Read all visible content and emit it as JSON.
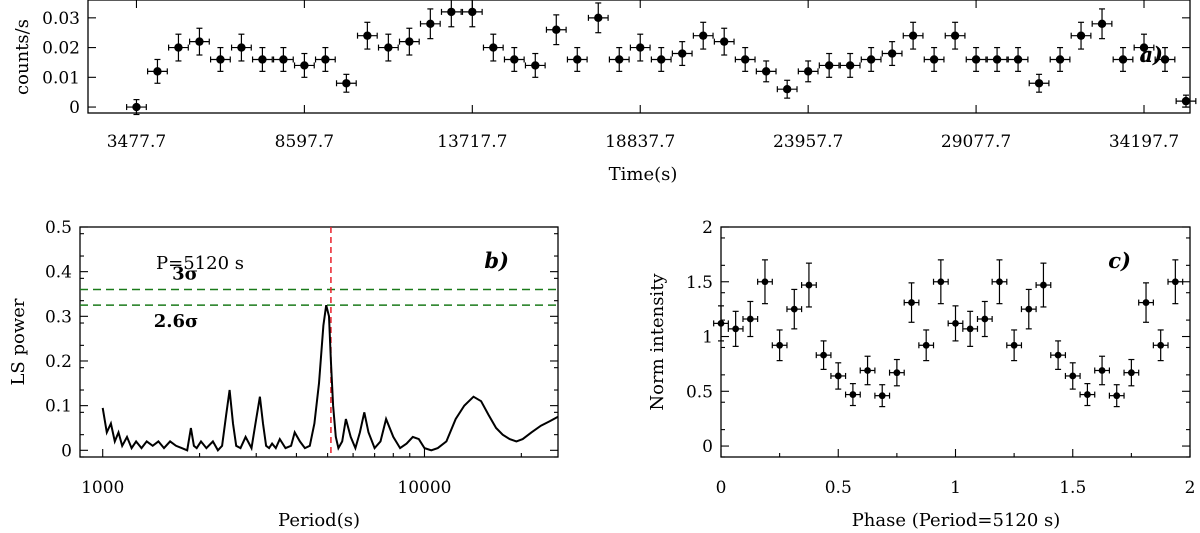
{
  "chart_data": [
    {
      "panel": "a)",
      "type": "scatter",
      "xlabel": "Time(s)",
      "ylabel": "counts/s",
      "xlim": [
        2000,
        35600
      ],
      "ylim": [
        -0.002,
        0.036
      ],
      "x_ticks": [
        3477.7,
        8597.7,
        13717.7,
        18837.7,
        23957.7,
        29077.7,
        34197.7
      ],
      "x_tick_labels": [
        "3477.7",
        "8597.7",
        "13717.7",
        "18837.7",
        "23957.7",
        "29077.7",
        "34197.7"
      ],
      "y_ticks": [
        0,
        0.01,
        0.02,
        0.03
      ],
      "y_tick_labels": [
        "0",
        "0.01",
        "0.02",
        "0.03"
      ],
      "x_err": 300,
      "x": [
        3477.7,
        4117.7,
        4757.7,
        5397.7,
        6037.7,
        6677.7,
        7317.7,
        7957.7,
        8597.7,
        9237.7,
        9877.7,
        10517.7,
        11157.7,
        11797.7,
        12437.7,
        13077.7,
        13717.7,
        14357.7,
        14997.7,
        15637.7,
        16277.7,
        16917.7,
        17557.7,
        18197.7,
        18837.7,
        19477.7,
        20117.7,
        20757.7,
        21397.7,
        22037.7,
        22677.7,
        23317.7,
        23957.7,
        24597.7,
        25237.7,
        25877.7,
        26517.7,
        27157.7,
        27797.7,
        28437.7,
        29077.7,
        29717.7,
        30357.7,
        30997.7,
        31637.7,
        32277.7,
        32917.7,
        33557.7,
        34197.7,
        34837.7,
        35477.7
      ],
      "y": [
        0.0,
        0.012,
        0.02,
        0.022,
        0.016,
        0.02,
        0.016,
        0.016,
        0.014,
        0.016,
        0.008,
        0.024,
        0.02,
        0.022,
        0.028,
        0.032,
        0.032,
        0.02,
        0.016,
        0.014,
        0.026,
        0.016,
        0.03,
        0.016,
        0.02,
        0.016,
        0.018,
        0.024,
        0.022,
        0.016,
        0.012,
        0.006,
        0.012,
        0.014,
        0.014,
        0.016,
        0.018,
        0.024,
        0.016,
        0.024,
        0.016,
        0.016,
        0.016,
        0.008,
        0.016,
        0.024,
        0.028,
        0.016,
        0.02,
        0.016,
        0.002
      ],
      "y_err": [
        0.0025,
        0.004,
        0.0045,
        0.0045,
        0.004,
        0.0045,
        0.004,
        0.004,
        0.004,
        0.004,
        0.003,
        0.0045,
        0.0045,
        0.0045,
        0.005,
        0.005,
        0.005,
        0.0045,
        0.004,
        0.004,
        0.005,
        0.004,
        0.005,
        0.004,
        0.0045,
        0.004,
        0.004,
        0.0045,
        0.0045,
        0.004,
        0.0035,
        0.003,
        0.0035,
        0.004,
        0.004,
        0.004,
        0.004,
        0.0045,
        0.004,
        0.0045,
        0.004,
        0.004,
        0.004,
        0.003,
        0.004,
        0.0045,
        0.005,
        0.004,
        0.0045,
        0.004,
        0.002
      ]
    },
    {
      "panel": "b)",
      "type": "line",
      "xlabel": "Period(s)",
      "ylabel": "LS power",
      "xscale": "log",
      "xlim": [
        850,
        26000
      ],
      "ylim": [
        -0.015,
        0.5
      ],
      "x_ticks": [
        1000,
        10000
      ],
      "x_tick_labels": [
        "1000",
        "10000"
      ],
      "y_ticks": [
        0,
        0.1,
        0.2,
        0.3,
        0.4,
        0.5
      ],
      "y_tick_labels": [
        "0",
        "0.1",
        "0.2",
        "0.3",
        "0.4",
        "0.5"
      ],
      "peak_label": "P=5120 s",
      "peak_period": 5120,
      "peak_color": "#e8212b",
      "threshold_color": "#1a7a1a",
      "thresholds": [
        {
          "label": "3σ",
          "value": 0.36
        },
        {
          "label": "2.6σ",
          "value": 0.325
        }
      ],
      "x": [
        1000,
        1030,
        1060,
        1090,
        1120,
        1150,
        1190,
        1230,
        1270,
        1320,
        1370,
        1430,
        1490,
        1550,
        1620,
        1690,
        1760,
        1830,
        1880,
        1920,
        1960,
        2020,
        2100,
        2200,
        2280,
        2350,
        2420,
        2480,
        2540,
        2600,
        2680,
        2780,
        2900,
        3000,
        3080,
        3150,
        3220,
        3290,
        3360,
        3450,
        3550,
        3700,
        3850,
        3950,
        4100,
        4250,
        4400,
        4550,
        4700,
        4850,
        4950,
        5050,
        5120,
        5200,
        5300,
        5400,
        5550,
        5700,
        5900,
        6100,
        6300,
        6500,
        6700,
        7000,
        7300,
        7600,
        8000,
        8400,
        8800,
        9200,
        9600,
        10000,
        10500,
        11000,
        11700,
        12500,
        13300,
        14200,
        15000,
        15800,
        16700,
        17500,
        18400,
        19300,
        20200,
        21500,
        23000,
        24500,
        26000
      ],
      "y": [
        0.095,
        0.04,
        0.06,
        0.02,
        0.04,
        0.01,
        0.03,
        0.005,
        0.02,
        0.005,
        0.02,
        0.01,
        0.02,
        0.005,
        0.02,
        0.01,
        0.005,
        0.0,
        0.05,
        0.01,
        0.005,
        0.02,
        0.005,
        0.02,
        0.0,
        0.01,
        0.08,
        0.135,
        0.06,
        0.01,
        0.005,
        0.03,
        0.005,
        0.07,
        0.12,
        0.06,
        0.01,
        0.005,
        0.015,
        0.005,
        0.025,
        0.005,
        0.01,
        0.04,
        0.02,
        0.005,
        0.01,
        0.06,
        0.15,
        0.28,
        0.325,
        0.3,
        0.2,
        0.1,
        0.03,
        0.005,
        0.02,
        0.07,
        0.03,
        0.005,
        0.04,
        0.085,
        0.04,
        0.005,
        0.02,
        0.07,
        0.03,
        0.005,
        0.015,
        0.03,
        0.025,
        0.005,
        0.0,
        0.005,
        0.02,
        0.07,
        0.1,
        0.12,
        0.11,
        0.08,
        0.05,
        0.035,
        0.025,
        0.02,
        0.025,
        0.04,
        0.055,
        0.065,
        0.075
      ]
    },
    {
      "panel": "c)",
      "type": "scatter",
      "xlabel": "Phase (Period=5120 s)",
      "ylabel": "Norm intensity",
      "xlim": [
        0,
        2
      ],
      "ylim": [
        -0.1,
        2
      ],
      "x_ticks": [
        0,
        0.5,
        1,
        1.5,
        2
      ],
      "x_tick_labels": [
        "0",
        "0.5",
        "1",
        "1.5",
        "2"
      ],
      "y_ticks": [
        0,
        0.5,
        1,
        1.5,
        2
      ],
      "y_tick_labels": [
        "0",
        "0.5",
        "1",
        "1.5",
        "2"
      ],
      "x_err": 0.03125,
      "x": [
        0.0,
        0.0625,
        0.125,
        0.1875,
        0.25,
        0.3125,
        0.375,
        0.4375,
        0.5,
        0.5625,
        0.625,
        0.6875,
        0.75,
        0.8125,
        0.875,
        0.9375,
        1.0,
        1.0625,
        1.125,
        1.1875,
        1.25,
        1.3125,
        1.375,
        1.4375,
        1.5,
        1.5625,
        1.625,
        1.6875,
        1.75,
        1.8125,
        1.875,
        1.9375
      ],
      "y": [
        1.12,
        1.07,
        1.16,
        1.5,
        0.92,
        1.25,
        1.47,
        0.83,
        0.64,
        0.47,
        0.69,
        0.46,
        0.67,
        1.31,
        0.92,
        1.5,
        1.12,
        1.07,
        1.16,
        1.5,
        0.92,
        1.25,
        1.47,
        0.83,
        0.64,
        0.47,
        0.69,
        0.46,
        0.67,
        1.31,
        0.92,
        1.5
      ],
      "y_err": [
        0.16,
        0.16,
        0.16,
        0.2,
        0.14,
        0.18,
        0.2,
        0.13,
        0.12,
        0.1,
        0.13,
        0.1,
        0.12,
        0.18,
        0.14,
        0.2,
        0.16,
        0.16,
        0.16,
        0.2,
        0.14,
        0.18,
        0.2,
        0.13,
        0.12,
        0.1,
        0.13,
        0.1,
        0.12,
        0.18,
        0.14,
        0.2
      ]
    }
  ]
}
